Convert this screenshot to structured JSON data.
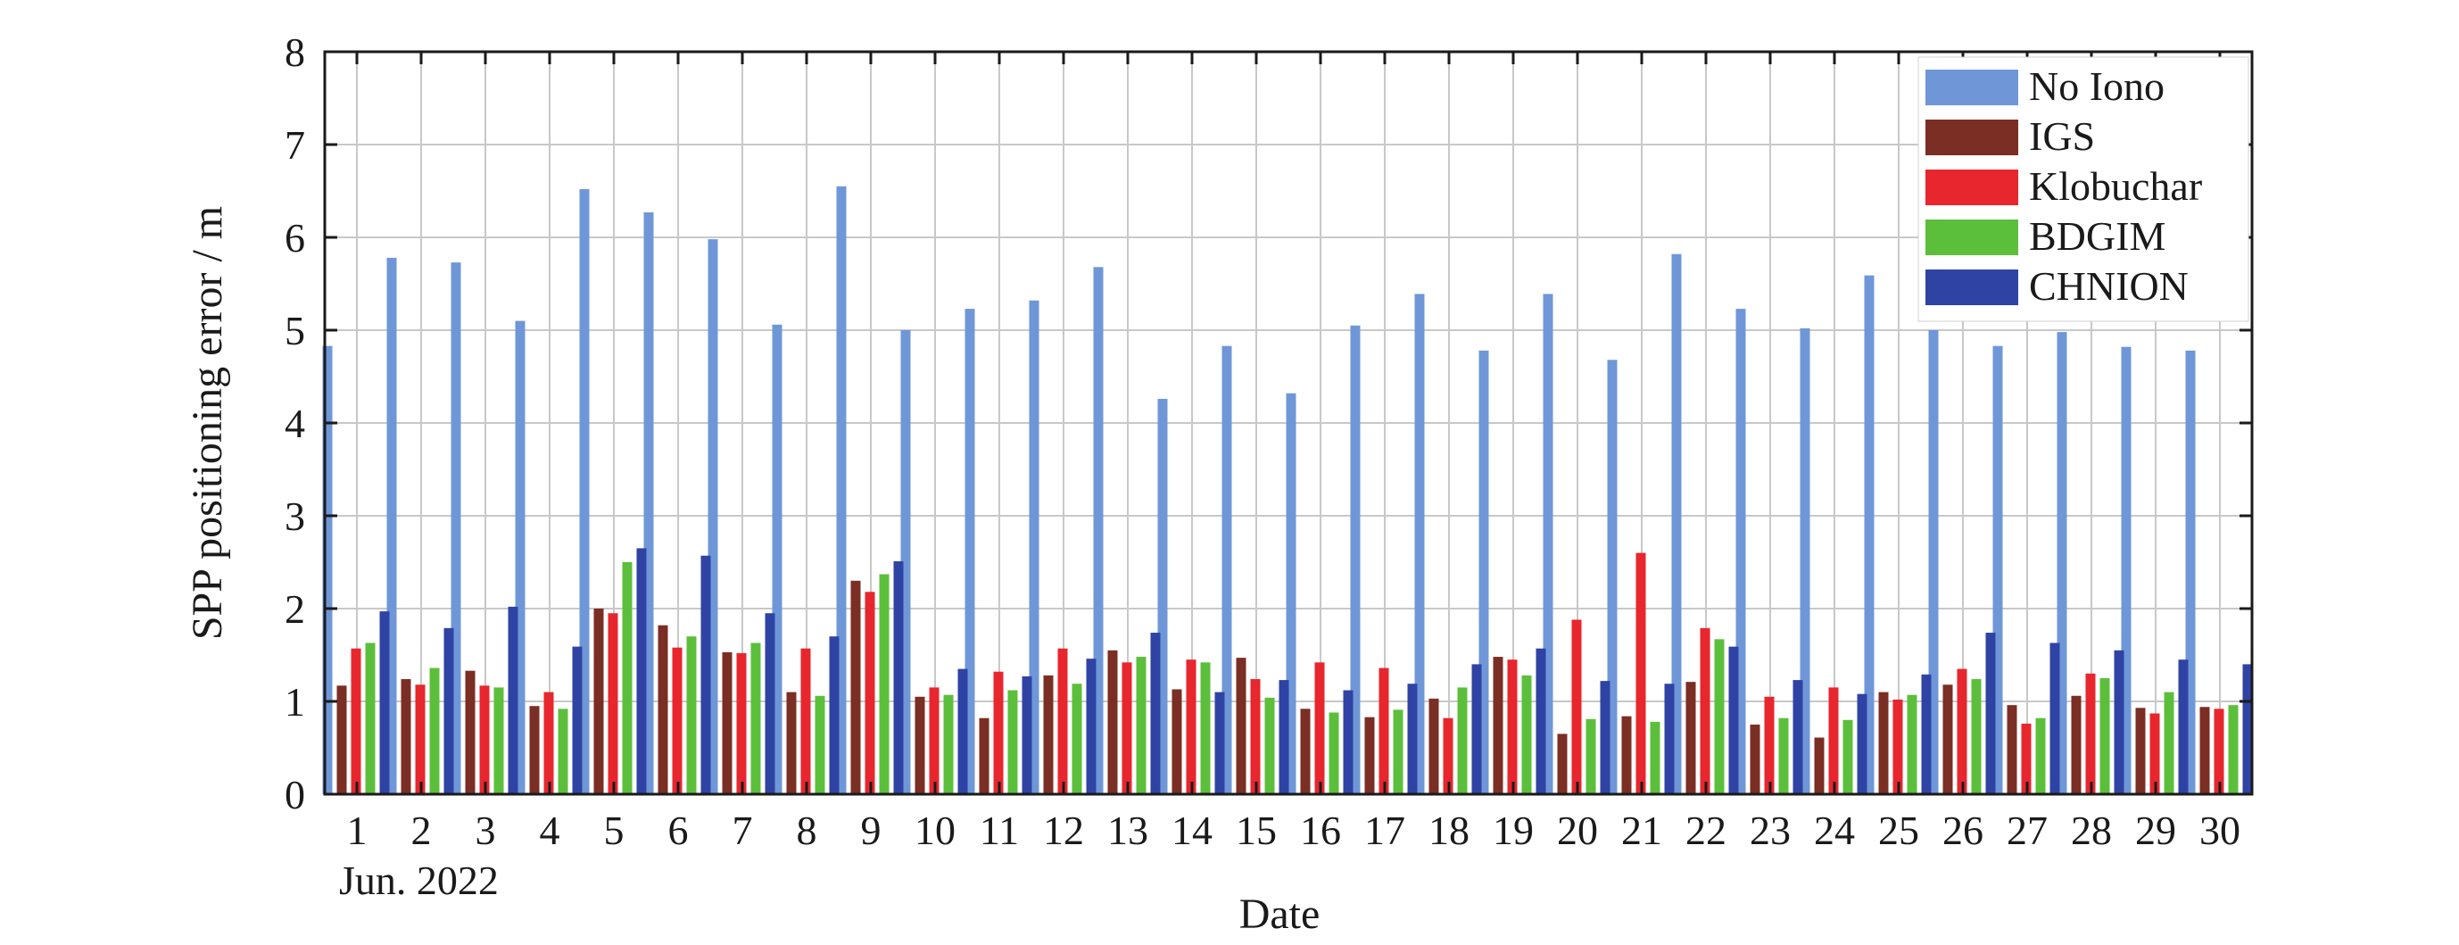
{
  "chart_data": {
    "type": "bar",
    "xlabel": "Date",
    "ylabel": "SPP positioning error / m",
    "date_note": "Jun. 2022",
    "categories": [
      "1",
      "2",
      "3",
      "4",
      "5",
      "6",
      "7",
      "8",
      "9",
      "10",
      "11",
      "12",
      "13",
      "14",
      "15",
      "16",
      "17",
      "18",
      "19",
      "20",
      "21",
      "22",
      "23",
      "24",
      "25",
      "26",
      "27",
      "28",
      "29",
      "30"
    ],
    "ylim": [
      0,
      8
    ],
    "yticks": [
      "0",
      "1",
      "2",
      "3",
      "4",
      "5",
      "6",
      "7",
      "8"
    ],
    "grid": true,
    "legend_position": "top-right",
    "series": [
      {
        "name": "No Iono",
        "color": "#6f97d8",
        "values": [
          4.83,
          5.78,
          5.73,
          5.1,
          6.52,
          6.27,
          5.98,
          5.06,
          6.55,
          5.0,
          5.23,
          5.32,
          5.68,
          4.26,
          4.83,
          4.32,
          5.05,
          5.39,
          4.78,
          5.39,
          4.68,
          5.82,
          5.23,
          5.02,
          5.59,
          5.0,
          4.83,
          4.98,
          4.82,
          4.78
        ]
      },
      {
        "name": "IGS",
        "color": "#7b2e24",
        "values": [
          1.17,
          1.24,
          1.33,
          0.95,
          2.0,
          1.82,
          1.53,
          1.1,
          2.3,
          1.05,
          0.82,
          1.28,
          1.55,
          1.13,
          1.47,
          0.92,
          0.83,
          1.03,
          1.48,
          0.65,
          0.84,
          1.21,
          0.75,
          0.61,
          1.1,
          1.18,
          0.96,
          1.06,
          0.93,
          0.94
        ]
      },
      {
        "name": "Klobuchar",
        "color": "#e8262d",
        "values": [
          1.57,
          1.18,
          1.17,
          1.1,
          1.95,
          1.58,
          1.52,
          1.57,
          2.18,
          1.15,
          1.32,
          1.57,
          1.42,
          1.45,
          1.24,
          1.42,
          1.36,
          0.82,
          1.45,
          1.88,
          2.6,
          1.79,
          1.05,
          1.15,
          1.02,
          1.35,
          0.76,
          1.3,
          0.87,
          0.92
        ]
      },
      {
        "name": "BDGIM",
        "color": "#5cbf3c",
        "values": [
          1.63,
          1.36,
          1.15,
          0.92,
          2.5,
          1.7,
          1.63,
          1.06,
          2.37,
          1.07,
          1.12,
          1.19,
          1.48,
          1.42,
          1.04,
          0.88,
          0.91,
          1.15,
          1.28,
          0.81,
          0.78,
          1.67,
          0.82,
          0.8,
          1.07,
          1.24,
          0.82,
          1.25,
          1.1,
          0.96
        ]
      },
      {
        "name": "CHNION",
        "color": "#2f43a5",
        "values": [
          1.97,
          1.79,
          2.02,
          1.59,
          2.65,
          2.57,
          1.95,
          1.7,
          2.51,
          1.35,
          1.27,
          1.46,
          1.74,
          1.1,
          1.23,
          1.12,
          1.19,
          1.4,
          1.57,
          1.22,
          1.19,
          1.59,
          1.23,
          1.08,
          1.29,
          1.74,
          1.63,
          1.55,
          1.45,
          1.4
        ]
      }
    ]
  }
}
